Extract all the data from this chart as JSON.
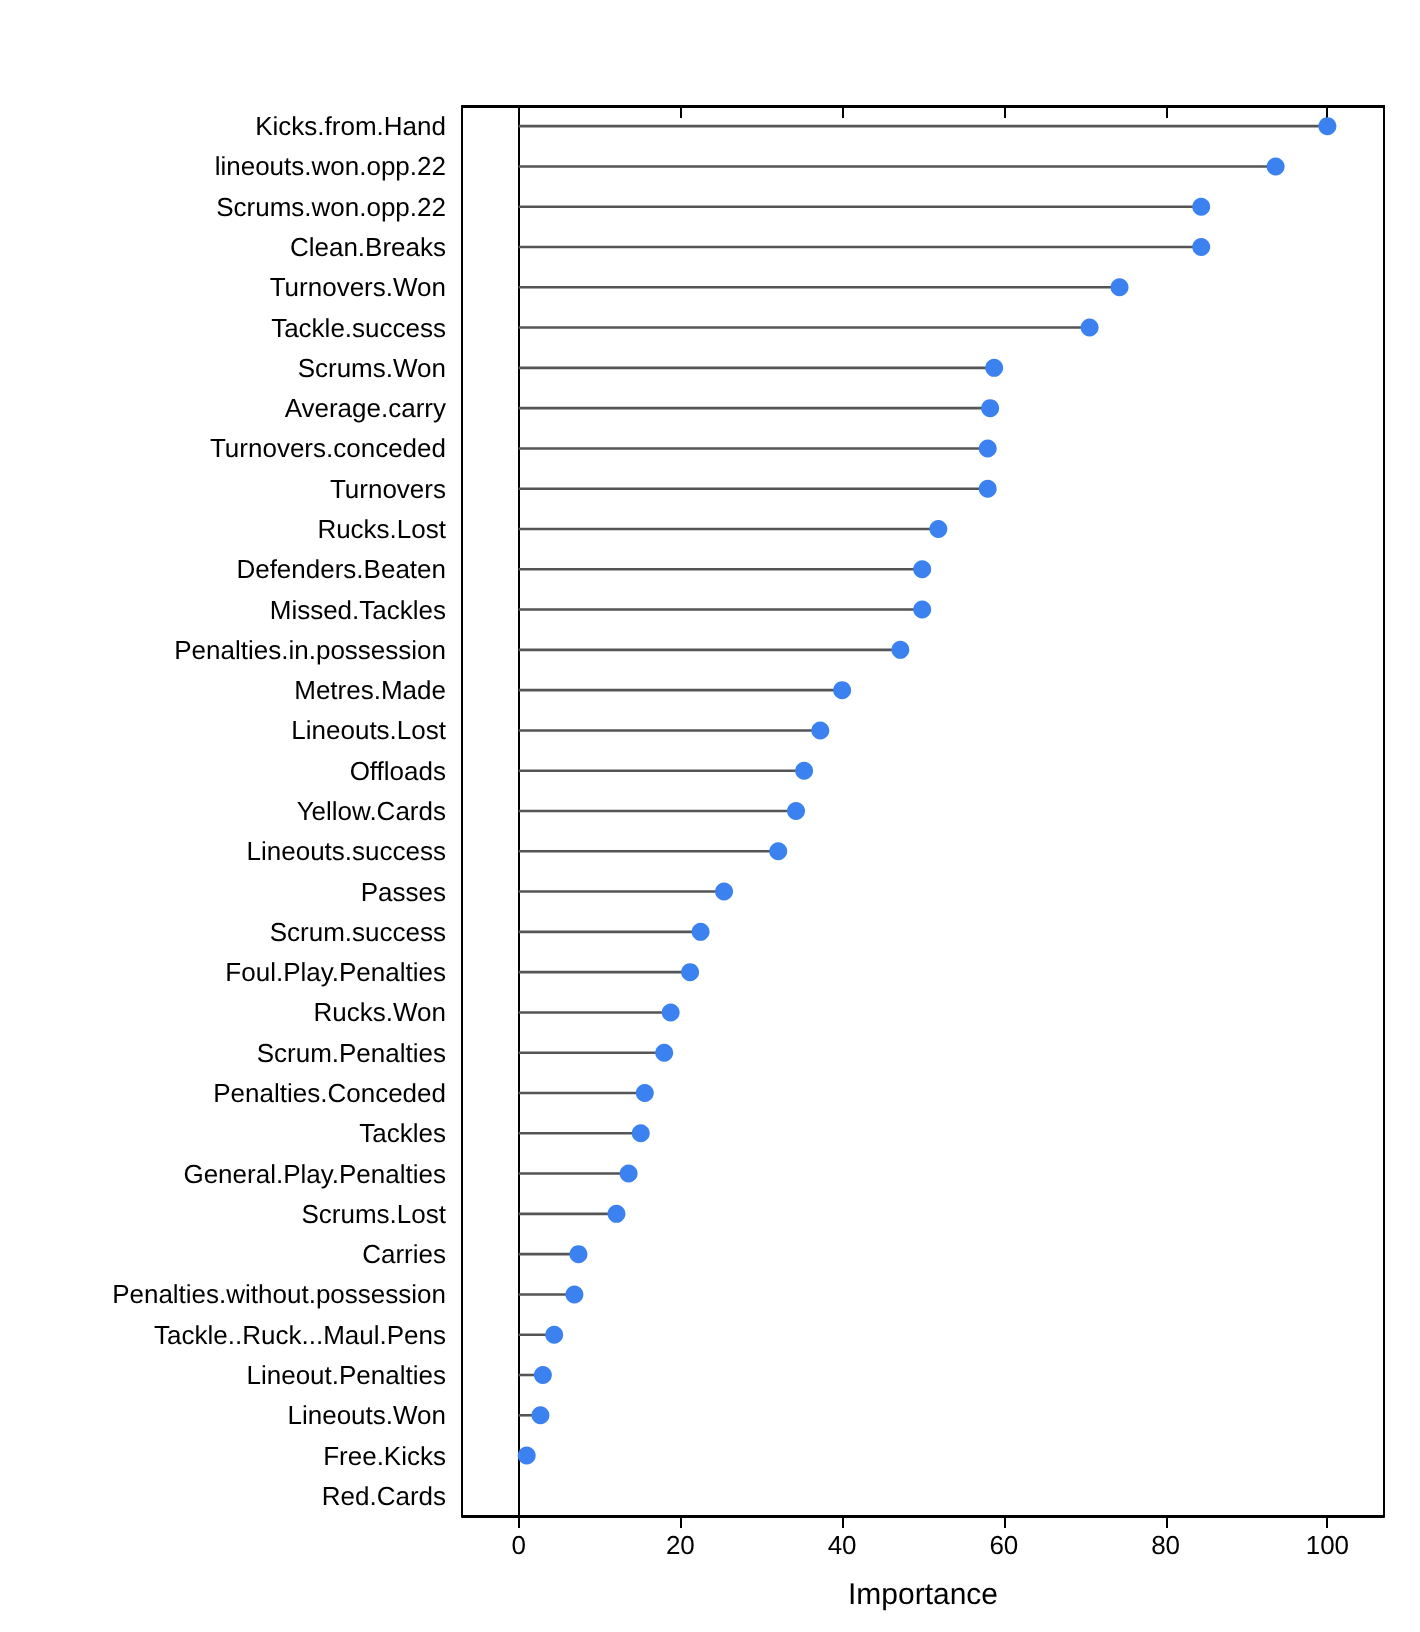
{
  "chart_data": {
    "type": "lollipop",
    "orientation": "horizontal",
    "xlabel": "Importance",
    "categories": [
      "Kicks.from.Hand",
      "lineouts.won.opp.22",
      "Scrums.won.opp.22",
      "Clean.Breaks",
      "Turnovers.Won",
      "Tackle.success",
      "Scrums.Won",
      "Average.carry",
      "Turnovers.conceded",
      "Turnovers",
      "Rucks.Lost",
      "Defenders.Beaten",
      "Missed.Tackles",
      "Penalties.in.possession",
      "Metres.Made",
      "Lineouts.Lost",
      "Offloads",
      "Yellow.Cards",
      "Lineouts.success",
      "Passes",
      "Scrum.success",
      "Foul.Play.Penalties",
      "Rucks.Won",
      "Scrum.Penalties",
      "Penalties.Conceded",
      "Tackles",
      "General.Play.Penalties",
      "Scrums.Lost",
      "Carries",
      "Penalties.without.possession",
      "Tackle..Ruck...Maul.Pens",
      "Lineout.Penalties",
      "Lineouts.Won",
      "Free.Kicks",
      "Red.Cards"
    ],
    "values": [
      100,
      93.6,
      84.4,
      84.4,
      74.3,
      70.6,
      58.8,
      58.3,
      58,
      58,
      51.9,
      49.9,
      49.9,
      47.2,
      40,
      37.3,
      35.3,
      34.3,
      32.1,
      25.4,
      22.5,
      21.2,
      18.8,
      18,
      15.6,
      15.1,
      13.6,
      12.1,
      7.4,
      6.9,
      4.4,
      3,
      2.7,
      1,
      null
    ],
    "color": "#3b82f0",
    "marker": "circle",
    "grid": false,
    "xlim": [
      -7,
      107
    ],
    "xticks": [
      0,
      20,
      40,
      60,
      80,
      100
    ]
  }
}
